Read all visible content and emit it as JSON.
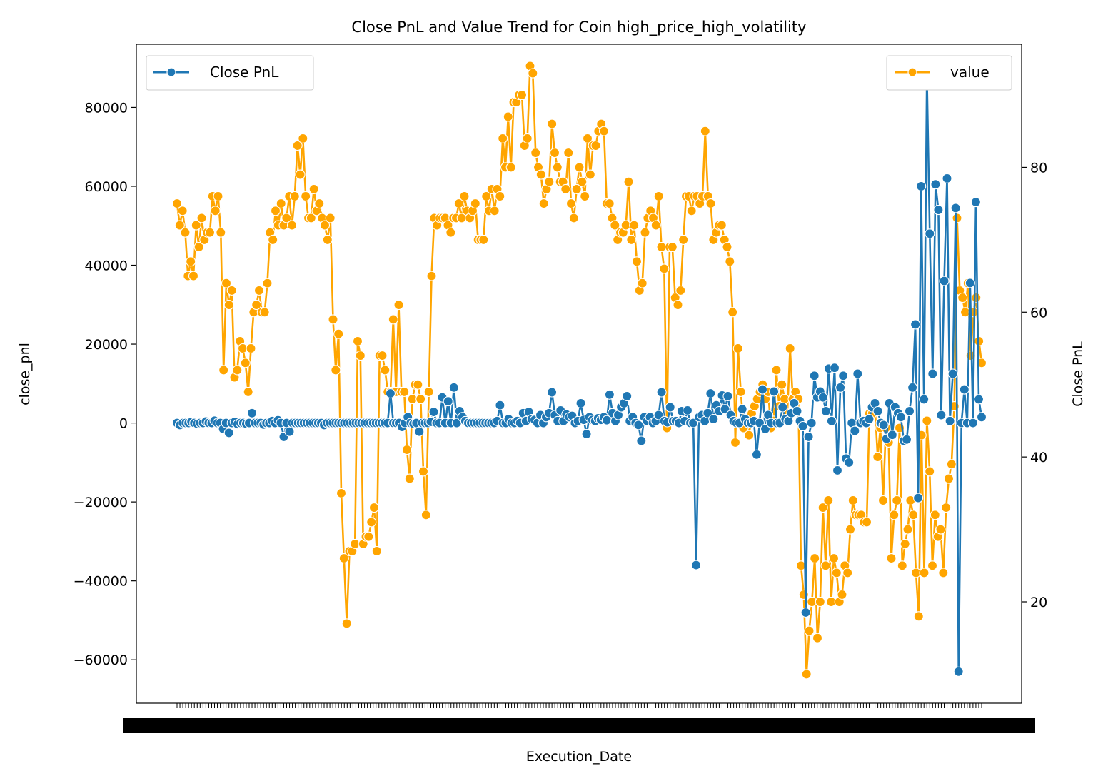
{
  "chart_data": {
    "type": "line",
    "title": "Close PnL and Value Trend for Coin high_price_high_volatility",
    "xlabel": "Execution_Date",
    "ylabel_left": "close_pnl",
    "ylabel_right": "Close PnL",
    "ylim_left": [
      -71000,
      96000
    ],
    "ylim_right": [
      6,
      97
    ],
    "yticks_left": [
      -60000,
      -40000,
      -20000,
      0,
      20000,
      40000,
      60000,
      80000
    ],
    "yticks_right": [
      20,
      40,
      60,
      80
    ],
    "grid": false,
    "legend_left": {
      "position": "upper-left",
      "label": "Close PnL"
    },
    "legend_right": {
      "position": "upper-right",
      "label": "value"
    },
    "colors": {
      "close_pnl": "#1f77b4",
      "value": "#ffa500"
    },
    "series": [
      {
        "name": "Close PnL",
        "axis": "left",
        "values": [
          0,
          -500,
          0,
          0,
          0,
          300,
          0,
          -200,
          0,
          0,
          400,
          0,
          0,
          600,
          0,
          0,
          -1500,
          0,
          -2500,
          0,
          300,
          -300,
          0,
          0,
          -200,
          0,
          2500,
          0,
          0,
          0,
          -400,
          0,
          0,
          500,
          0,
          700,
          0,
          -3500,
          0,
          -2200,
          0,
          0,
          0,
          0,
          0,
          0,
          0,
          0,
          0,
          0,
          0,
          -500,
          0,
          0,
          0,
          0,
          0,
          0,
          0,
          0,
          0,
          0,
          0,
          0,
          0,
          0,
          0,
          0,
          0,
          0,
          0,
          0,
          0,
          0,
          7500,
          0,
          0,
          0,
          -1000,
          0,
          1500,
          0,
          -200,
          0,
          -2200,
          0,
          0,
          0,
          300,
          2800,
          0,
          0,
          6500,
          0,
          5500,
          0,
          9000,
          0,
          3000,
          1500,
          500,
          0,
          0,
          0,
          0,
          0,
          0,
          0,
          0,
          0,
          0,
          500,
          4500,
          0,
          0,
          1000,
          0,
          0,
          500,
          0,
          2500,
          500,
          2800,
          1000,
          800,
          0,
          2000,
          0,
          1500,
          2500,
          7800,
          2000,
          500,
          3200,
          500,
          2200,
          1500,
          1800,
          0,
          500,
          5000,
          800,
          -2800,
          1500,
          800,
          500,
          1200,
          800,
          1500,
          700,
          7200,
          2500,
          500,
          2000,
          4000,
          5000,
          6800,
          500,
          1500,
          0,
          -500,
          -4500,
          1500,
          500,
          1500,
          0,
          500,
          2000,
          7800,
          500,
          200,
          4000,
          500,
          500,
          0,
          3000,
          500,
          3200,
          0,
          0,
          -36000,
          1500,
          2000,
          500,
          2500,
          7500,
          1000,
          4500,
          3000,
          7000,
          3500,
          6800,
          2000,
          500,
          0,
          0,
          3500,
          1000,
          0,
          0,
          500,
          -8000,
          0,
          8500,
          -1500,
          2000,
          0,
          8000,
          0,
          0,
          4000,
          1000,
          500,
          2500,
          5000,
          3000,
          500,
          -800,
          -48000,
          -3500,
          0,
          12000,
          6500,
          8000,
          6500,
          3000,
          13800,
          500,
          14000,
          -12000,
          9000,
          12000,
          -9000,
          -10000,
          0,
          -2000,
          12500,
          0,
          500,
          0,
          1000,
          4000,
          5000,
          3000,
          0,
          -500,
          -4000,
          5000,
          -3000,
          4000,
          2500,
          1500,
          -4500,
          -4200,
          3000,
          9000,
          25000,
          -19000,
          60000,
          6000,
          88000,
          48000,
          12500,
          60500,
          54000,
          2000,
          36000,
          62000,
          500,
          12500,
          54500,
          -63000,
          0,
          8500,
          0,
          35500,
          0,
          56000,
          6000,
          1500
        ]
      },
      {
        "name": "value",
        "axis": "right",
        "values": [
          75,
          72,
          74,
          71,
          65,
          67,
          65,
          72,
          69,
          73,
          70,
          71,
          71,
          76,
          74,
          76,
          71,
          52,
          64,
          61,
          63,
          51,
          52,
          56,
          55,
          53,
          49,
          55,
          60,
          61,
          63,
          60,
          60,
          64,
          71,
          70,
          74,
          72,
          75,
          72,
          73,
          76,
          72,
          76,
          83,
          79,
          84,
          76,
          73,
          73,
          77,
          74,
          75,
          73,
          72,
          70,
          73,
          59,
          52,
          57,
          35,
          26,
          17,
          27,
          27,
          28,
          56,
          54,
          28,
          29,
          29,
          31,
          33,
          27,
          54,
          54,
          52,
          49,
          49,
          59,
          49,
          61,
          49,
          49,
          41,
          37,
          48,
          50,
          50,
          48,
          38,
          32,
          49,
          65,
          73,
          72,
          73,
          73,
          73,
          72,
          71,
          73,
          73,
          75,
          73,
          76,
          74,
          73,
          74,
          75,
          70,
          70,
          70,
          76,
          74,
          77,
          74,
          77,
          76,
          84,
          80,
          87,
          80,
          89,
          89,
          90,
          90,
          83,
          84,
          94,
          93,
          82,
          80,
          79,
          75,
          77,
          78,
          86,
          82,
          80,
          78,
          78,
          77,
          82,
          75,
          73,
          77,
          80,
          78,
          76,
          84,
          79,
          83,
          83,
          85,
          86,
          85,
          75,
          75,
          73,
          72,
          70,
          71,
          71,
          72,
          78,
          70,
          72,
          67,
          63,
          64,
          71,
          73,
          74,
          73,
          72,
          76,
          69,
          66,
          44,
          69,
          69,
          62,
          61,
          63,
          70,
          76,
          76,
          74,
          76,
          76,
          75,
          76,
          85,
          76,
          75,
          70,
          71,
          72,
          72,
          70,
          69,
          67,
          60,
          42,
          55,
          49,
          44,
          45,
          43,
          46,
          47,
          48,
          49,
          50,
          48,
          49,
          44,
          45,
          52,
          47,
          50,
          48,
          46,
          55,
          48,
          49,
          48,
          25,
          21,
          10,
          16,
          20,
          26,
          15,
          20,
          33,
          25,
          34,
          20,
          26,
          24,
          20,
          21,
          25,
          24,
          30,
          34,
          32,
          32,
          32,
          31,
          31,
          46,
          46,
          47,
          40,
          44,
          34,
          44,
          42,
          26,
          32,
          34,
          44,
          25,
          28,
          30,
          34,
          32,
          24,
          18,
          43,
          24,
          45,
          38,
          25,
          32,
          29,
          30,
          24,
          33,
          37,
          39,
          47,
          73,
          63,
          62,
          60,
          64,
          54,
          60,
          62,
          56,
          53
        ]
      }
    ]
  }
}
